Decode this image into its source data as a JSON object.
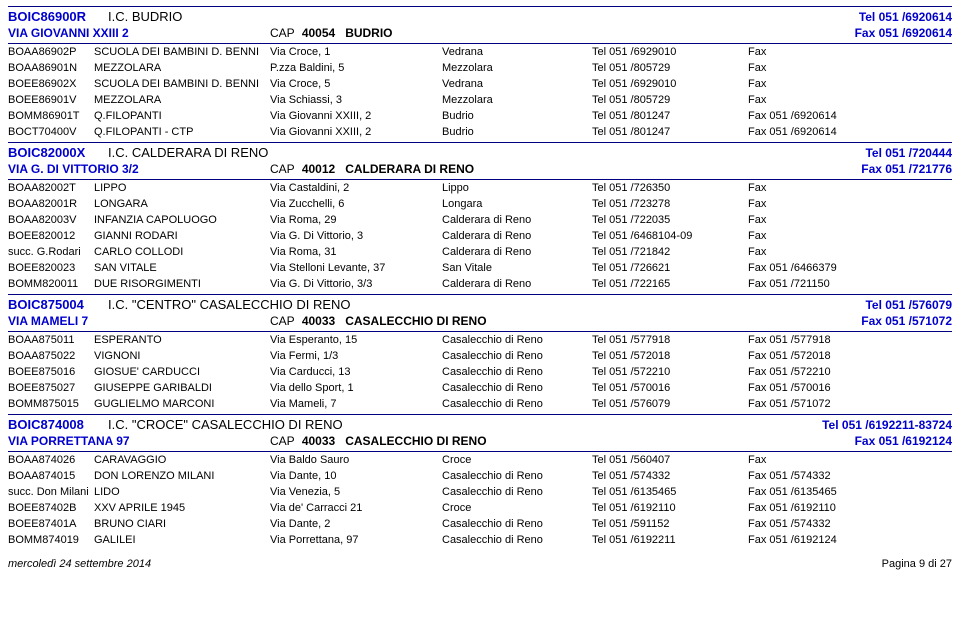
{
  "groups": [
    {
      "code": "BOIC86900R",
      "name": "I.C. BUDRIO",
      "tel": "Tel 051 /6920614",
      "addr": "VIA GIOVANNI XXIII 2",
      "cap_label": "CAP",
      "cap": "40054",
      "city": "BUDRIO",
      "fax": "Fax 051 /6920614",
      "rows": [
        {
          "code": "BOAA86902P",
          "name": "SCUOLA DEI BAMBINI D. BENNI",
          "addr": "Via Croce, 1",
          "city": "Vedrana",
          "tel": "Tel   051  /6929010",
          "fax": "Fax"
        },
        {
          "code": "BOAA86901N",
          "name": "MEZZOLARA",
          "addr": "P.zza Baldini, 5",
          "city": "Mezzolara",
          "tel": "Tel   051  /805729",
          "fax": "Fax"
        },
        {
          "code": "BOEE86902X",
          "name": "SCUOLA DEI BAMBINI D. BENNI",
          "addr": "Via Croce, 5",
          "city": "Vedrana",
          "tel": "Tel   051  /6929010",
          "fax": "Fax"
        },
        {
          "code": "BOEE86901V",
          "name": "MEZZOLARA",
          "addr": "Via Schiassi, 3",
          "city": "Mezzolara",
          "tel": "Tel   051  /805729",
          "fax": "Fax"
        },
        {
          "code": "BOMM86901T",
          "name": "Q.FILOPANTI",
          "addr": "Via Giovanni XXIII, 2",
          "city": "Budrio",
          "tel": "Tel   051  /801247",
          "fax": "Fax 051 /6920614"
        },
        {
          "code": "BOCT70400V",
          "name": "Q.FILOPANTI - CTP",
          "addr": "Via Giovanni XXIII, 2",
          "city": "Budrio",
          "tel": "Tel   051  /801247",
          "fax": "Fax 051 /6920614"
        }
      ]
    },
    {
      "code": "BOIC82000X",
      "name": "I.C. CALDERARA DI RENO",
      "tel": "Tel 051 /720444",
      "addr": "VIA G. DI VITTORIO 3/2",
      "cap_label": "CAP",
      "cap": "40012",
      "city": "CALDERARA DI RENO",
      "fax": "Fax 051 /721776",
      "rows": [
        {
          "code": "BOAA82002T",
          "name": "LIPPO",
          "addr": "Via Castaldini, 2",
          "city": "Lippo",
          "tel": "Tel   051  /726350",
          "fax": "Fax"
        },
        {
          "code": "BOAA82001R",
          "name": "LONGARA",
          "addr": "Via Zucchelli, 6",
          "city": "Longara",
          "tel": "Tel   051  /723278",
          "fax": "Fax"
        },
        {
          "code": "BOAA82003V",
          "name": "INFANZIA CAPOLUOGO",
          "addr": "Via Roma, 29",
          "city": "Calderara di Reno",
          "tel": "Tel   051  /722035",
          "fax": "Fax"
        },
        {
          "code": "BOEE820012",
          "name": "GIANNI RODARI",
          "addr": "Via G. Di Vittorio, 3",
          "city": "Calderara di Reno",
          "tel": "Tel   051  /6468104-09",
          "fax": "Fax"
        },
        {
          "code": "succ. G.Rodari",
          "name": "CARLO COLLODI",
          "addr": "Via Roma, 31",
          "city": "Calderara di Reno",
          "tel": "Tel   051  /721842",
          "fax": "Fax"
        },
        {
          "code": "BOEE820023",
          "name": "SAN VITALE",
          "addr": "Via Stelloni Levante, 37",
          "city": "San Vitale",
          "tel": "Tel   051  /726621",
          "fax": "Fax 051 /6466379"
        },
        {
          "code": "BOMM820011",
          "name": "DUE RISORGIMENTI",
          "addr": "Via G. Di Vittorio, 3/3",
          "city": "Calderara di Reno",
          "tel": "Tel   051  /722165",
          "fax": "Fax 051 /721150"
        }
      ]
    },
    {
      "code": "BOIC875004",
      "name": "I.C. \"CENTRO\" CASALECCHIO DI RENO",
      "tel": "Tel 051 /576079",
      "addr": "VIA MAMELI 7",
      "cap_label": "CAP",
      "cap": "40033",
      "city": "CASALECCHIO DI RENO",
      "fax": "Fax 051 /571072",
      "rows": [
        {
          "code": "BOAA875011",
          "name": "ESPERANTO",
          "addr": "Via Esperanto, 15",
          "city": "Casalecchio di Reno",
          "tel": "Tel   051  /577918",
          "fax": "Fax 051 /577918"
        },
        {
          "code": "BOAA875022",
          "name": "VIGNONI",
          "addr": "Via Fermi, 1/3",
          "city": "Casalecchio di Reno",
          "tel": "Tel   051  /572018",
          "fax": "Fax 051 /572018"
        },
        {
          "code": "BOEE875016",
          "name": "GIOSUE' CARDUCCI",
          "addr": "Via Carducci, 13",
          "city": "Casalecchio di Reno",
          "tel": "Tel   051  /572210",
          "fax": "Fax 051 /572210"
        },
        {
          "code": "BOEE875027",
          "name": "GIUSEPPE GARIBALDI",
          "addr": "Via dello Sport, 1",
          "city": "Casalecchio di Reno",
          "tel": "Tel   051  /570016",
          "fax": "Fax 051 /570016"
        },
        {
          "code": "BOMM875015",
          "name": "GUGLIELMO MARCONI",
          "addr": "Via Mameli, 7",
          "city": "Casalecchio di Reno",
          "tel": "Tel   051  /576079",
          "fax": "Fax 051 /571072"
        }
      ]
    },
    {
      "code": "BOIC874008",
      "name": "I.C. \"CROCE\" CASALECCHIO DI RENO",
      "tel": "Tel 051 /6192211-83724",
      "addr": "VIA PORRETTANA 97",
      "cap_label": "CAP",
      "cap": "40033",
      "city": "CASALECCHIO DI RENO",
      "fax": "Fax 051 /6192124",
      "rows": [
        {
          "code": "BOAA874026",
          "name": "CARAVAGGIO",
          "addr": "Via Baldo Sauro",
          "city": "Croce",
          "tel": "Tel   051  /560407",
          "fax": "Fax"
        },
        {
          "code": "BOAA874015",
          "name": "DON LORENZO MILANI",
          "addr": "Via Dante, 10",
          "city": "Casalecchio di Reno",
          "tel": "Tel   051  /574332",
          "fax": "Fax 051 /574332"
        },
        {
          "code": "succ. Don Milani",
          "name": "LIDO",
          "addr": "Via Venezia, 5",
          "city": "Casalecchio di Reno",
          "tel": "Tel   051  /6135465",
          "fax": "Fax 051 /6135465"
        },
        {
          "code": "BOEE87402B",
          "name": "XXV APRILE 1945",
          "addr": "Via de' Carracci 21",
          "city": "Croce",
          "tel": "Tel   051  /6192110",
          "fax": "Fax 051 /6192110"
        },
        {
          "code": "BOEE87401A",
          "name": "BRUNO CIARI",
          "addr": "Via Dante, 2",
          "city": "Casalecchio di Reno",
          "tel": "Tel   051  /591152",
          "fax": "Fax 051 /574332"
        },
        {
          "code": "BOMM874019",
          "name": "GALILEI",
          "addr": "Via Porrettana, 97",
          "city": "Casalecchio di Reno",
          "tel": "Tel   051  /6192211",
          "fax": "Fax 051 /6192124"
        }
      ]
    }
  ],
  "footer": {
    "date": "mercoledì 24 settembre 2014",
    "page": "Pagina 9 di 27"
  }
}
